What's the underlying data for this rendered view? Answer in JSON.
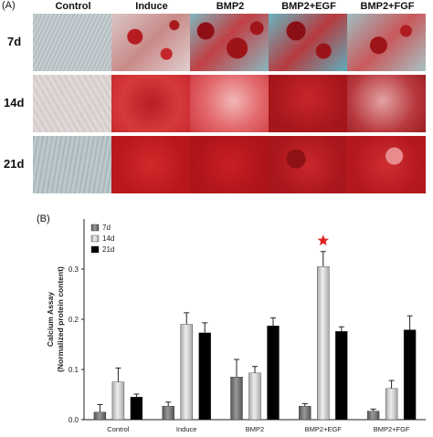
{
  "panel_a": {
    "label": "(A)",
    "columns": [
      "Control",
      "Induce",
      "BMP2",
      "BMP2+EGF",
      "BMP2+FGF"
    ],
    "rows": [
      "7d",
      "14d",
      "21d"
    ]
  },
  "panel_b": {
    "label": "(B)"
  },
  "colors": {
    "series_7d": "#6f6f6f",
    "series_14d": "#c8c8c8",
    "series_21d": "#000000",
    "star": "#e02020",
    "control_tissue": "#b9c2c6",
    "stain_red": "#c2171c"
  },
  "chart_data": {
    "type": "bar",
    "categories": [
      "Control",
      "Induce",
      "BMP2",
      "BMP2+EGF",
      "BMP2+FGF"
    ],
    "series": [
      {
        "name": "7d",
        "values": [
          0.015,
          0.027,
          0.085,
          0.027,
          0.017
        ],
        "errors": [
          0.015,
          0.008,
          0.035,
          0.005,
          0.004
        ]
      },
      {
        "name": "14d",
        "values": [
          0.075,
          0.19,
          0.093,
          0.305,
          0.062
        ],
        "errors": [
          0.028,
          0.023,
          0.013,
          0.03,
          0.016
        ]
      },
      {
        "name": "21d",
        "values": [
          0.045,
          0.173,
          0.187,
          0.176,
          0.179
        ],
        "errors": [
          0.006,
          0.02,
          0.016,
          0.009,
          0.028
        ]
      }
    ],
    "ylabel_line1": "Calcium Assay",
    "ylabel_line2": "(Normalized protein content)",
    "ylim": [
      0,
      0.4
    ],
    "yticks": [
      "0.0",
      "0.1",
      "0.2",
      "0.3"
    ],
    "legend_position": "top-left",
    "annotation": "star above BMP2+EGF 14d"
  }
}
